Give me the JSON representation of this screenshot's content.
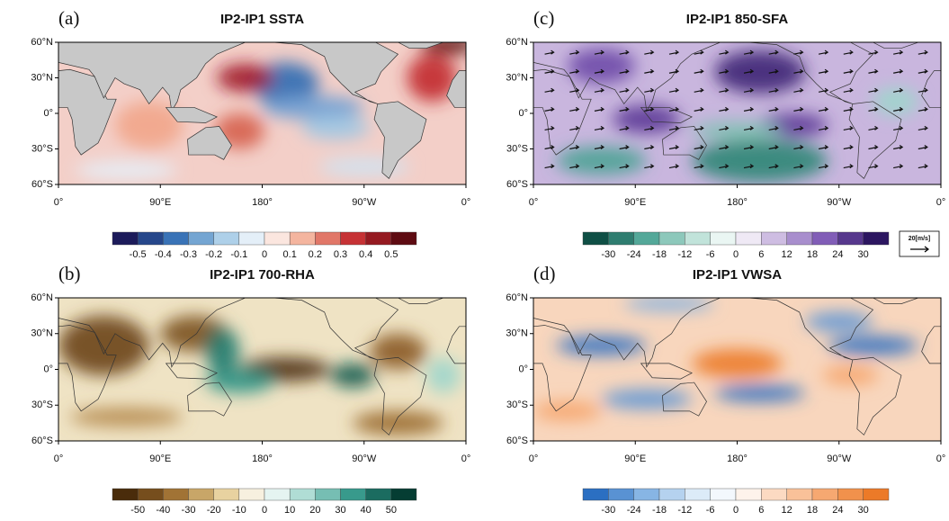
{
  "panels": [
    {
      "label": "(a)",
      "title": "IP2-IP1 SSTA",
      "x_ticks": [
        "0°",
        "90°E",
        "180°",
        "90°W",
        "0°"
      ],
      "y_ticks": [
        "60°N",
        "30°N",
        "0°",
        "30°S",
        "60°S"
      ],
      "colorbar": {
        "labels": [
          "-0.5",
          "-0.4",
          "-0.3",
          "-0.2",
          "-0.1",
          "0",
          "0.1",
          "0.2",
          "0.3",
          "0.4",
          "0.5"
        ],
        "colors": [
          "#1c1b5a",
          "#2f6bb3",
          "#9cc6e4",
          "#ffffff",
          "#f2a58a",
          "#c2272d",
          "#5e0b12"
        ]
      }
    },
    {
      "label": "(b)",
      "title": "IP2-IP1 700-RHA",
      "x_ticks": [
        "0°",
        "90°E",
        "180°",
        "90°W",
        "0°"
      ],
      "y_ticks": [
        "60°N",
        "30°N",
        "0°",
        "30°S",
        "60°S"
      ],
      "colorbar": {
        "labels": [
          "-50",
          "-40",
          "-30",
          "-20",
          "-10",
          "0",
          "10",
          "20",
          "30",
          "40",
          "50"
        ],
        "colors": [
          "#4a2c0b",
          "#9a6a2c",
          "#e3c88b",
          "#ffffff",
          "#9fd6cc",
          "#2e9486",
          "#053d33"
        ]
      }
    },
    {
      "label": "(c)",
      "title": "IP2-IP1 850-SFA",
      "x_ticks": [
        "0°",
        "90°E",
        "180°",
        "90°W",
        "0°"
      ],
      "y_ticks": [
        "60°N",
        "30°N",
        "0°",
        "30°S",
        "60°S"
      ],
      "colorbar": {
        "labels": [
          "-30",
          "-24",
          "-18",
          "-12",
          "-6",
          "0",
          "6",
          "12",
          "18",
          "24",
          "30"
        ],
        "colors": [
          "#0f4f45",
          "#4aa393",
          "#b3ddd2",
          "#ffffff",
          "#c3aedc",
          "#7a55b3",
          "#2c1660"
        ]
      },
      "reference_vector": "20[m/s]"
    },
    {
      "label": "(d)",
      "title": "IP2-IP1 VWSA",
      "x_ticks": [
        "0°",
        "90°E",
        "180°",
        "90°W",
        "0°"
      ],
      "y_ticks": [
        "60°N",
        "30°N",
        "0°",
        "30°S",
        "60°S"
      ],
      "colorbar": {
        "labels": [
          "-30",
          "-24",
          "-18",
          "-12",
          "-6",
          "0",
          "6",
          "12",
          "18",
          "24",
          "30"
        ],
        "colors": [
          "#2b6fc2",
          "#7fb0e2",
          "#d4e6f6",
          "#ffffff",
          "#fbd2b4",
          "#f6a46a",
          "#ec7a28"
        ]
      }
    }
  ]
}
